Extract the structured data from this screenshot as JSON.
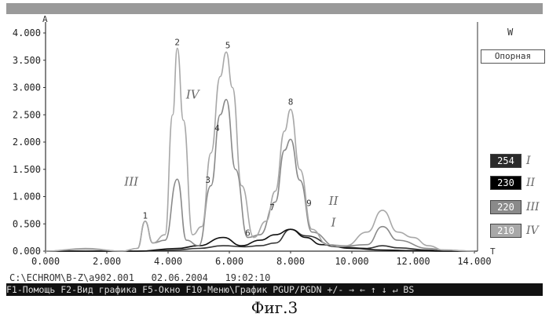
{
  "window": {
    "ref_label": "Опорная",
    "w_label": "W"
  },
  "chart_data": {
    "type": "line",
    "x_axis_letter": "T",
    "y_axis_letter": "A",
    "xlim": [
      0,
      14
    ],
    "ylim": [
      0,
      4
    ],
    "x_ticks": [
      "0.000",
      "2.000",
      "4.000",
      "6.000",
      "8.000",
      "10.000",
      "12.000",
      "14.000"
    ],
    "y_ticks": [
      "4.000",
      "3.500",
      "3.000",
      "2.500",
      "2.000",
      "1.500",
      "1.000",
      "0.500",
      "0.000"
    ],
    "series": [
      {
        "name": "I",
        "wavelength": "254",
        "color": "#333333",
        "x": [
          0,
          3.0,
          4.2,
          5.0,
          5.8,
          6.5,
          7.0,
          7.5,
          8.0,
          8.5,
          9.5,
          10.5,
          11.0,
          11.5,
          12.5,
          13.0,
          14.0
        ],
        "y": [
          0,
          0,
          0.02,
          0.05,
          0.1,
          0.08,
          0.1,
          0.15,
          0.4,
          0.28,
          0.08,
          0.05,
          0.1,
          0.06,
          0.02,
          0,
          0
        ]
      },
      {
        "name": "II",
        "wavelength": "230",
        "color": "#111111",
        "x": [
          0,
          3.0,
          4.3,
          5.0,
          5.8,
          6.4,
          7.0,
          7.5,
          8.0,
          8.5,
          9.0,
          10.0,
          11.0,
          12.0,
          13.0,
          14.0
        ],
        "y": [
          0,
          0,
          0.05,
          0.1,
          0.25,
          0.1,
          0.2,
          0.3,
          0.4,
          0.25,
          0.12,
          0.05,
          0.02,
          0.01,
          0,
          0
        ]
      },
      {
        "name": "III",
        "wavelength": "220",
        "color": "#8a8a8a",
        "x": [
          0,
          1.3,
          2.5,
          3.0,
          3.25,
          3.5,
          3.9,
          4.3,
          4.6,
          5.0,
          5.4,
          5.7,
          5.9,
          6.2,
          6.6,
          7.0,
          7.5,
          7.8,
          8.0,
          8.3,
          8.7,
          9.5,
          10.5,
          11.0,
          11.5,
          12.5,
          13.0,
          14.0
        ],
        "y": [
          0,
          0.04,
          0,
          0.05,
          0.55,
          0.15,
          0.2,
          1.32,
          0.2,
          0.1,
          1.2,
          2.5,
          2.78,
          1.5,
          0.25,
          0.3,
          0.9,
          1.85,
          2.05,
          1.3,
          0.35,
          0.08,
          0.12,
          0.45,
          0.2,
          0.05,
          0.02,
          0
        ]
      },
      {
        "name": "IV",
        "wavelength": "210",
        "color": "#a8a8a8",
        "x": [
          0,
          1.3,
          2.5,
          3.0,
          3.25,
          3.5,
          3.9,
          4.15,
          4.3,
          4.5,
          4.8,
          5.1,
          5.4,
          5.7,
          5.9,
          6.1,
          6.4,
          6.8,
          7.2,
          7.5,
          7.8,
          8.0,
          8.3,
          8.7,
          9.2,
          9.8,
          10.5,
          11.0,
          11.5,
          12.0,
          12.5,
          13.0,
          14.0
        ],
        "y": [
          0,
          0.05,
          0,
          0.05,
          0.55,
          0.15,
          0.3,
          2.5,
          3.72,
          2.4,
          0.3,
          0.45,
          1.8,
          3.2,
          3.65,
          3.0,
          1.2,
          0.25,
          0.55,
          1.1,
          2.2,
          2.6,
          1.5,
          0.4,
          0.12,
          0.1,
          0.35,
          0.75,
          0.35,
          0.25,
          0.1,
          0.02,
          0
        ]
      }
    ],
    "peak_labels": [
      {
        "text": "1",
        "x": 3.25,
        "y": 0.6
      },
      {
        "text": "2",
        "x": 4.3,
        "y": 3.78
      },
      {
        "text": "3",
        "x": 5.3,
        "y": 1.25
      },
      {
        "text": "4",
        "x": 5.6,
        "y": 2.2
      },
      {
        "text": "5",
        "x": 5.95,
        "y": 3.72
      },
      {
        "text": "6",
        "x": 6.6,
        "y": 0.28
      },
      {
        "text": "7",
        "x": 7.4,
        "y": 0.75
      },
      {
        "text": "8",
        "x": 8.0,
        "y": 2.68
      },
      {
        "text": "9",
        "x": 8.6,
        "y": 0.83
      }
    ],
    "curve_labels": [
      {
        "text": "IV",
        "x": 4.8,
        "y": 2.8
      },
      {
        "text": "III",
        "x": 2.8,
        "y": 1.2
      },
      {
        "text": "II",
        "x": 9.4,
        "y": 0.85
      },
      {
        "text": "I",
        "x": 9.4,
        "y": 0.45
      }
    ]
  },
  "wavelengths": [
    {
      "value": "254",
      "roman": "I",
      "bg": "#2a2a2a",
      "fg": "#ffffff"
    },
    {
      "value": "230",
      "roman": "II",
      "bg": "#000000",
      "fg": "#ffffff"
    },
    {
      "value": "220",
      "roman": "III",
      "bg": "#8a8a8a",
      "fg": "#ffffff"
    },
    {
      "value": "210",
      "roman": "IV",
      "bg": "#a8a8a8",
      "fg": "#ffffff"
    }
  ],
  "status": {
    "path": "C:\\ECHROM\\B-Z\\a902.001",
    "date": "02.06.2004",
    "time": "19:02:10"
  },
  "function_keys": "F1-Помощь F2-Вид графика F5-Окно F10-Меню\\График PGUP/PGDN +/- → ← ↑ ↓ ↵ BS",
  "caption": "Фиг.3"
}
